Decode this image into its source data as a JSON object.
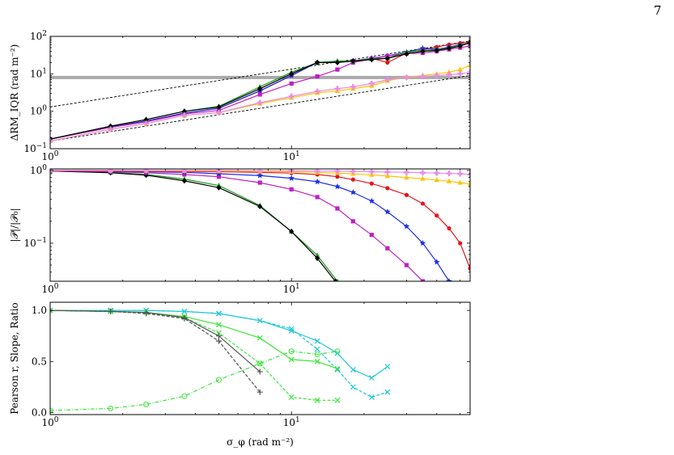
{
  "page_number": "7",
  "colors": {
    "red": "#e8141c",
    "blue": "#1a2ee6",
    "magenta": "#c020c0",
    "green": "#1c9c1c",
    "black": "#000000",
    "gold": "#ffc400",
    "violet": "#e88ce8",
    "ref_grey": "#aaaaaa",
    "cyan": "#20c8d8",
    "lime": "#3ce63c",
    "grey": "#555555"
  },
  "chart_data": [
    {
      "type": "line",
      "ylabel": "ΔRM_IQR (rad m⁻²)",
      "xlabel": "",
      "xscale": "log",
      "yscale": "log",
      "xlim": [
        1,
        55
      ],
      "ylim": [
        0.1,
        100
      ],
      "xticks": [
        "10^0",
        "10^1"
      ],
      "yticks": [
        "10^-1",
        "10^0",
        "10^1",
        "10^2"
      ],
      "x": [
        1,
        1.78,
        2.5,
        3.6,
        5,
        7.4,
        10,
        12.8,
        15.5,
        18,
        21.5,
        25,
        30,
        35,
        40,
        45,
        50,
        55
      ],
      "series": [
        {
          "color": "red",
          "marker": "o",
          "values": [
            0.18,
            0.38,
            0.55,
            0.9,
            1.2,
            3.5,
            9,
            20,
            20.5,
            22,
            26,
            20,
            36,
            44,
            52,
            60,
            66,
            70
          ]
        },
        {
          "color": "blue",
          "marker": "*",
          "values": [
            0.18,
            0.38,
            0.55,
            0.9,
            1.2,
            3.5,
            9,
            20,
            21,
            22,
            26,
            30,
            38,
            48,
            45,
            52,
            60,
            65
          ]
        },
        {
          "color": "magenta",
          "marker": "s",
          "values": [
            0.18,
            0.37,
            0.52,
            0.85,
            1.05,
            2.8,
            5.5,
            8.5,
            13,
            20,
            25,
            30,
            35,
            36,
            40,
            45,
            50,
            55
          ]
        },
        {
          "color": "green",
          "marker": "^",
          "values": [
            0.18,
            0.4,
            0.6,
            1.0,
            1.35,
            4.5,
            11,
            20,
            22,
            22,
            25,
            26,
            38,
            42,
            44,
            50,
            58,
            68
          ]
        },
        {
          "color": "black",
          "marker": "D",
          "values": [
            0.18,
            0.4,
            0.6,
            1.0,
            1.3,
            4.0,
            10,
            20,
            20,
            22,
            24,
            26,
            34,
            40,
            42,
            48,
            55,
            68
          ]
        },
        {
          "color": "gold",
          "marker": "^",
          "values": [
            0.16,
            0.33,
            0.47,
            0.78,
            0.92,
            1.6,
            2.3,
            3.1,
            3.5,
            4.0,
            4.8,
            6.5,
            8.2,
            9.0,
            10,
            11,
            13,
            17
          ]
        },
        {
          "color": "violet",
          "marker": "P",
          "values": [
            0.16,
            0.33,
            0.47,
            0.78,
            0.92,
            1.7,
            2.5,
            3.4,
            4.0,
            4.5,
            5.5,
            7.0,
            8.0,
            8.5,
            9.0,
            9.5,
            10,
            11
          ]
        }
      ],
      "hline": 8,
      "ref_lines": [
        {
          "style": "dashed",
          "points": [
            [
              1,
              1.3
            ],
            [
              55,
              75
            ]
          ]
        },
        {
          "style": "dashed",
          "points": [
            [
              1,
              0.16
            ],
            [
              55,
              9
            ]
          ]
        }
      ]
    },
    {
      "type": "line",
      "ylabel": "|𝒫|/|𝒫₀|",
      "xlabel": "",
      "xscale": "log",
      "yscale": "log",
      "xlim": [
        1,
        55
      ],
      "ylim": [
        0.03,
        1.05
      ],
      "xticks": [
        "10^0",
        "10^1"
      ],
      "yticks": [
        "10^-1",
        "10^0"
      ],
      "series": [
        {
          "color": "green",
          "marker": "^",
          "x": [
            1,
            1.78,
            2.5,
            3.6,
            5,
            7.4,
            10,
            12.8,
            15.5
          ],
          "values": [
            0.98,
            0.94,
            0.88,
            0.76,
            0.62,
            0.33,
            0.145,
            0.068,
            0.03
          ]
        },
        {
          "color": "black",
          "marker": "D",
          "x": [
            1,
            1.78,
            2.5,
            3.6,
            5,
            7.4,
            10,
            12.8,
            15.2
          ],
          "values": [
            0.98,
            0.93,
            0.86,
            0.72,
            0.58,
            0.32,
            0.145,
            0.062,
            0.03
          ]
        },
        {
          "color": "magenta",
          "marker": "s",
          "x": [
            1,
            1.78,
            2.5,
            3.6,
            5,
            7.4,
            10,
            12.8,
            15.5,
            18,
            21.5,
            25,
            30,
            35
          ],
          "values": [
            0.98,
            0.96,
            0.93,
            0.88,
            0.82,
            0.68,
            0.55,
            0.43,
            0.3,
            0.2,
            0.13,
            0.085,
            0.05,
            0.03
          ]
        },
        {
          "color": "blue",
          "marker": "*",
          "x": [
            1,
            1.78,
            2.5,
            3.6,
            5,
            7.4,
            10,
            12.8,
            15.5,
            18,
            21.5,
            25,
            30,
            35,
            40,
            45
          ],
          "values": [
            0.98,
            0.97,
            0.96,
            0.94,
            0.9,
            0.85,
            0.78,
            0.7,
            0.6,
            0.5,
            0.38,
            0.27,
            0.17,
            0.1,
            0.055,
            0.03
          ]
        },
        {
          "color": "red",
          "marker": "o",
          "x": [
            1,
            1.78,
            2.5,
            3.6,
            5,
            7.4,
            10,
            12.8,
            15.5,
            18,
            21.5,
            25,
            30,
            35,
            40,
            45,
            50,
            55
          ],
          "values": [
            0.99,
            0.98,
            0.98,
            0.97,
            0.96,
            0.94,
            0.92,
            0.88,
            0.82,
            0.75,
            0.66,
            0.57,
            0.46,
            0.35,
            0.24,
            0.16,
            0.1,
            0.045
          ]
        },
        {
          "color": "gold",
          "marker": "^",
          "x": [
            1,
            1.78,
            2.5,
            3.6,
            5,
            7.4,
            10,
            12.8,
            15.5,
            18,
            21.5,
            25,
            30,
            35,
            40,
            45,
            50,
            55
          ],
          "values": [
            1.0,
            1.0,
            0.99,
            0.99,
            0.98,
            0.97,
            0.96,
            0.94,
            0.92,
            0.9,
            0.87,
            0.84,
            0.8,
            0.77,
            0.74,
            0.71,
            0.68,
            0.65
          ]
        },
        {
          "color": "violet",
          "marker": "P",
          "x": [
            1,
            1.78,
            2.5,
            3.6,
            5,
            7.4,
            10,
            12.8,
            15.5,
            18,
            21.5,
            25,
            30,
            35,
            40,
            45,
            50,
            55
          ],
          "values": [
            1.0,
            1.0,
            1.0,
            1.0,
            1.0,
            0.99,
            0.99,
            0.98,
            0.98,
            0.97,
            0.96,
            0.95,
            0.94,
            0.93,
            0.92,
            0.91,
            0.9,
            0.88
          ]
        }
      ]
    },
    {
      "type": "line",
      "ylabel": "Pearson r, Slope, Ratio",
      "xlabel": "σ_φ (rad m⁻²)",
      "xscale": "log",
      "yscale": "linear",
      "xlim": [
        1,
        55
      ],
      "ylim": [
        -0.02,
        1.08
      ],
      "xticks": [
        "10^0",
        "10^1"
      ],
      "yticks": [
        "0.0",
        "0.5",
        "1.0"
      ],
      "series": [
        {
          "color": "cyan",
          "style": "solid",
          "marker": "x",
          "x": [
            1,
            1.78,
            2.5,
            3.6,
            5,
            7.4,
            10,
            12.8,
            15.5,
            18,
            21.5,
            25
          ],
          "values": [
            1.0,
            1.0,
            1.0,
            0.99,
            0.97,
            0.9,
            0.8,
            0.7,
            0.58,
            0.42,
            0.34,
            0.45
          ]
        },
        {
          "color": "cyan",
          "style": "dashed",
          "marker": "x",
          "x": [
            1,
            1.78,
            2.5,
            3.6,
            5,
            7.4,
            10,
            12.8,
            15.5,
            18,
            21.5,
            25
          ],
          "values": [
            1.0,
            1.0,
            1.0,
            0.99,
            0.97,
            0.9,
            0.82,
            0.62,
            0.42,
            0.25,
            0.15,
            0.2
          ]
        },
        {
          "color": "lime",
          "style": "solid",
          "marker": "x",
          "x": [
            1,
            1.78,
            2.5,
            3.6,
            5,
            7.4,
            10,
            12.8,
            15.5
          ],
          "values": [
            1.0,
            0.99,
            0.98,
            0.94,
            0.86,
            0.73,
            0.52,
            0.5,
            0.43
          ]
        },
        {
          "color": "lime",
          "style": "dashed",
          "marker": "x",
          "x": [
            1,
            1.78,
            2.5,
            3.6,
            5,
            7.4,
            10,
            12.8,
            15.5
          ],
          "values": [
            1.0,
            0.99,
            0.98,
            0.93,
            0.78,
            0.48,
            0.15,
            0.12,
            0.12
          ]
        },
        {
          "color": "lime",
          "style": "dashdot",
          "marker": "o",
          "x": [
            1,
            1.78,
            2.5,
            3.6,
            5,
            7.4,
            10,
            12.8,
            15.5
          ],
          "values": [
            0.02,
            0.04,
            0.08,
            0.16,
            0.32,
            0.48,
            0.6,
            0.57,
            0.6
          ]
        },
        {
          "color": "grey",
          "style": "solid",
          "marker": "+",
          "x": [
            1,
            1.78,
            2.5,
            3.6,
            5,
            7.4
          ],
          "values": [
            1.0,
            0.99,
            0.98,
            0.93,
            0.75,
            0.4
          ]
        },
        {
          "color": "grey",
          "style": "dashed",
          "marker": "+",
          "x": [
            1,
            1.78,
            2.5,
            3.6,
            5,
            7.4
          ],
          "values": [
            1.0,
            0.99,
            0.97,
            0.92,
            0.7,
            0.2
          ]
        }
      ]
    }
  ]
}
